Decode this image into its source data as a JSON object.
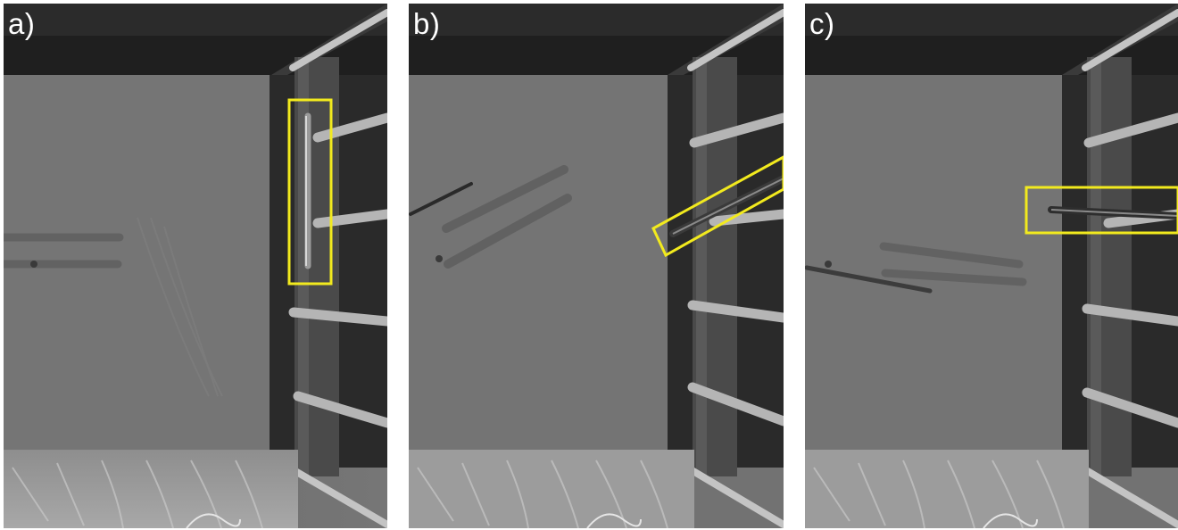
{
  "figure": {
    "panels": [
      {
        "id": "a",
        "label": "a)"
      },
      {
        "id": "b",
        "label": "b)"
      },
      {
        "id": "c",
        "label": "c)"
      }
    ],
    "highlight_color": "#f2ea1e"
  }
}
